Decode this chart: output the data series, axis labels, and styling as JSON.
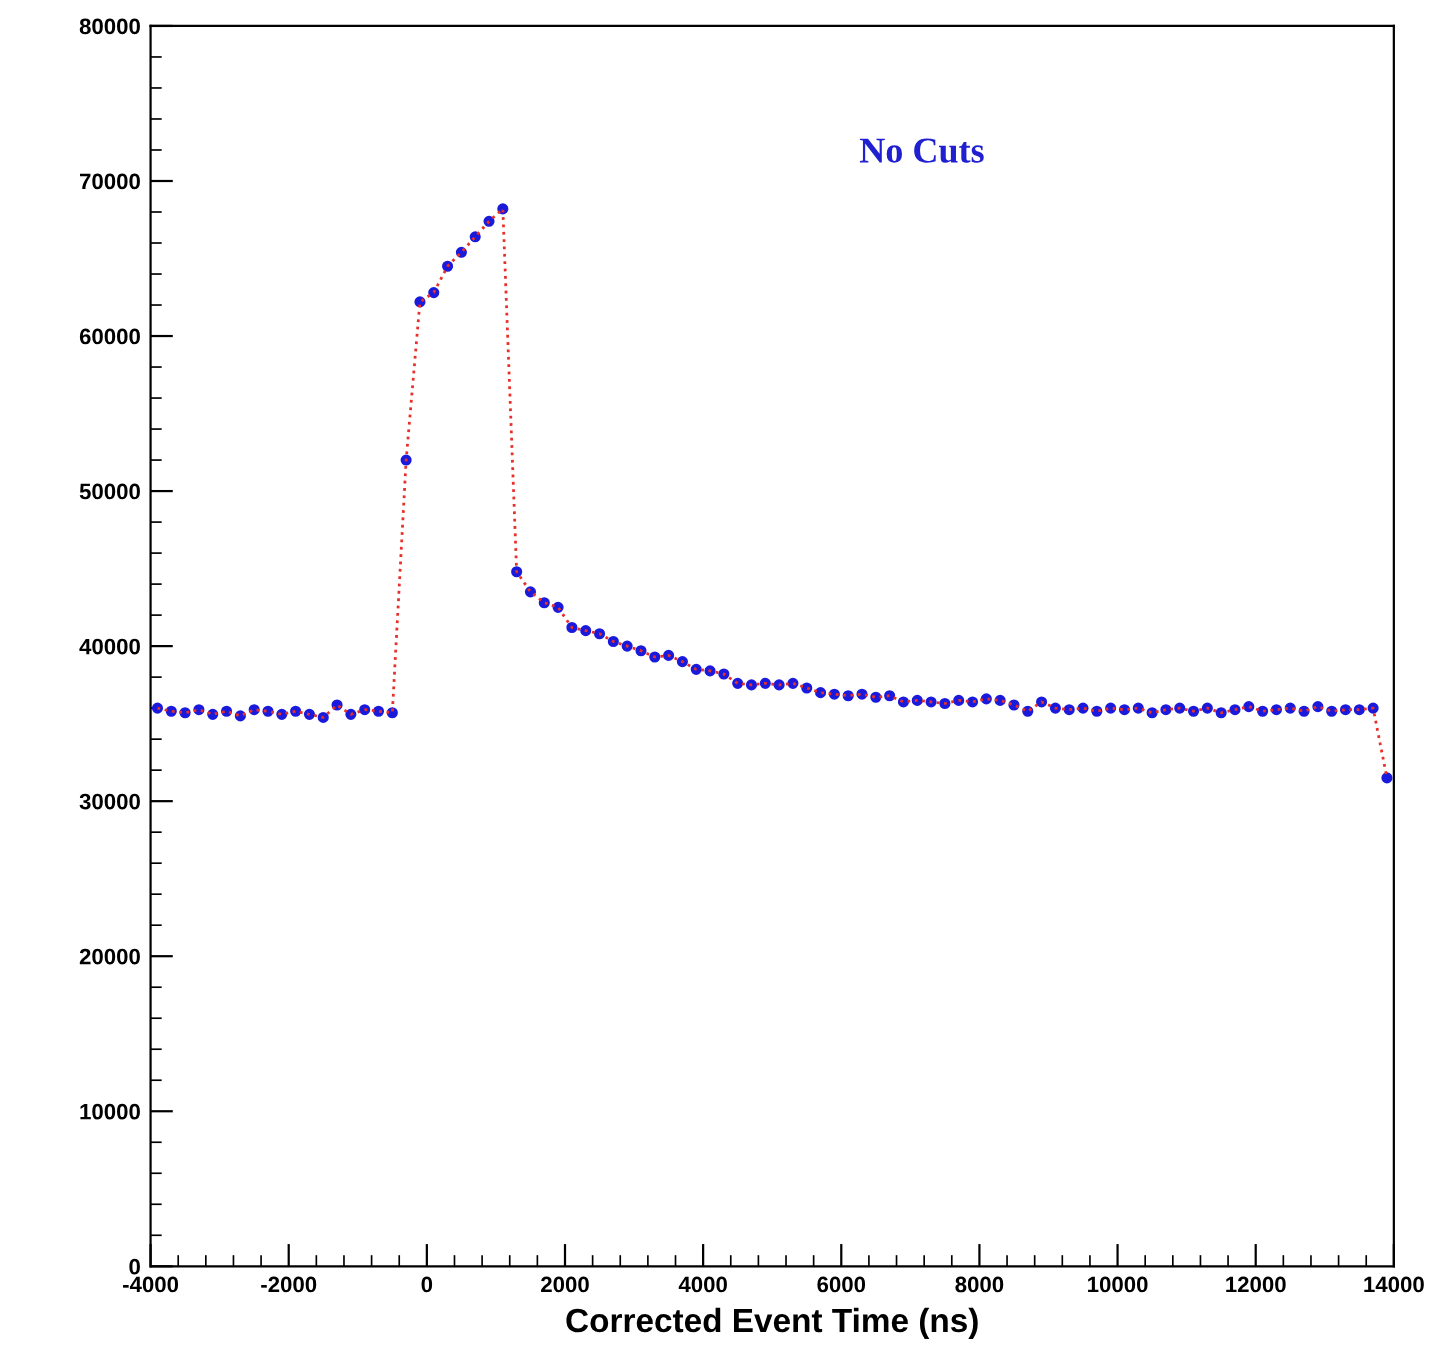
{
  "chart_data": {
    "type": "line",
    "xlabel": "Corrected Event Time (ns)",
    "annotations": [
      "No Cuts"
    ],
    "x": [
      -3900,
      -3700,
      -3500,
      -3300,
      -3100,
      -2900,
      -2700,
      -2500,
      -2300,
      -2100,
      -1900,
      -1700,
      -1500,
      -1300,
      -1100,
      -900,
      -700,
      -500,
      -300,
      -100,
      100,
      300,
      500,
      700,
      900,
      1100,
      1300,
      1500,
      1700,
      1900,
      2100,
      2300,
      2500,
      2700,
      2900,
      3100,
      3300,
      3500,
      3700,
      3900,
      4100,
      4300,
      4500,
      4700,
      4900,
      5100,
      5300,
      5500,
      5700,
      5900,
      6100,
      6300,
      6500,
      6700,
      6900,
      7100,
      7300,
      7500,
      7700,
      7900,
      8100,
      8300,
      8500,
      8700,
      8900,
      9100,
      9300,
      9500,
      9700,
      9900,
      10100,
      10300,
      10500,
      10700,
      10900,
      11100,
      11300,
      11500,
      11700,
      11900,
      12100,
      12300,
      12500,
      12700,
      12900,
      13100,
      13300,
      13500,
      13700,
      13900
    ],
    "series": [
      {
        "color": "#e8302a",
        "line_style": "dotted",
        "marker": "none",
        "values": [
          36000,
          35800,
          35700,
          35900,
          35600,
          35800,
          35500,
          35900,
          35800,
          35600,
          35800,
          35600,
          35400,
          36200,
          35600,
          35900,
          35800,
          35700,
          52000,
          62200,
          62800,
          64500,
          65400,
          66400,
          67400,
          68200,
          44800,
          43500,
          42800,
          42500,
          41200,
          41000,
          40800,
          40300,
          40000,
          39700,
          39300,
          39400,
          39000,
          38500,
          38400,
          38200,
          37600,
          37500,
          37600,
          37500,
          37600,
          37300,
          37000,
          36900,
          36800,
          36900,
          36700,
          36800,
          36400,
          36500,
          36400,
          36300,
          36500,
          36400,
          36600,
          36500,
          36200,
          35800,
          36400,
          36000,
          35900,
          36000,
          35800,
          36000,
          35900,
          36000,
          35700,
          35900,
          36000,
          35800,
          36000,
          35700,
          35900,
          36100,
          35800,
          35900,
          36000,
          35800,
          36100,
          35800,
          35900,
          35900,
          36000,
          31500
        ]
      },
      {
        "type": "scatter",
        "color": "#1a1adc",
        "marker": "circle",
        "values": [
          36000,
          35800,
          35700,
          35900,
          35600,
          35800,
          35500,
          35900,
          35800,
          35600,
          35800,
          35600,
          35400,
          36200,
          35600,
          35900,
          35800,
          35700,
          52000,
          62200,
          62800,
          64500,
          65400,
          66400,
          67400,
          68200,
          44800,
          43500,
          42800,
          42500,
          41200,
          41000,
          40800,
          40300,
          40000,
          39700,
          39300,
          39400,
          39000,
          38500,
          38400,
          38200,
          37600,
          37500,
          37600,
          37500,
          37600,
          37300,
          37000,
          36900,
          36800,
          36900,
          36700,
          36800,
          36400,
          36500,
          36400,
          36300,
          36500,
          36400,
          36600,
          36500,
          36200,
          35800,
          36400,
          36000,
          35900,
          36000,
          35800,
          36000,
          35900,
          36000,
          35700,
          35900,
          36000,
          35800,
          36000,
          35700,
          35900,
          36100,
          35800,
          35900,
          36000,
          35800,
          36100,
          35800,
          35900,
          35900,
          36000,
          31500
        ]
      }
    ],
    "xlim": [
      -4000,
      14000
    ],
    "xticks": [
      -4000,
      -2000,
      0,
      2000,
      4000,
      6000,
      8000,
      10000,
      12000,
      14000
    ],
    "ylim": [
      0,
      80000
    ],
    "yticks": [
      0,
      10000,
      20000,
      30000,
      40000,
      50000,
      60000,
      70000,
      80000
    ],
    "grid": false,
    "legend": false
  }
}
